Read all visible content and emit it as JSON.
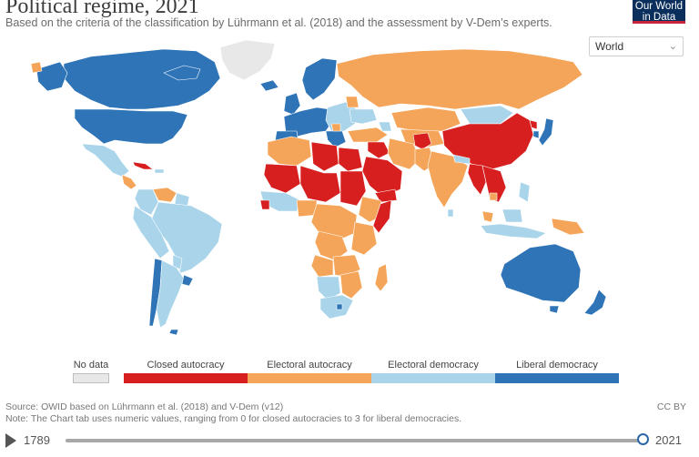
{
  "header": {
    "title": "Political regime, 2021",
    "subtitle": "Based on the criteria of the classification by Lührmann et al. (2018) and the assessment by V-Dem’s experts.",
    "logo_line1": "Our World",
    "logo_line2": "in Data"
  },
  "controls": {
    "region_select": "World"
  },
  "colors": {
    "no_data": "#e8e8e8",
    "closed_autocracy": "#d71f20",
    "electoral_autocracy": "#f5a559",
    "electoral_democracy": "#a9d4ea",
    "liberal_democracy": "#2e74b7",
    "ocean": "#ffffff",
    "border": "#ffffff"
  },
  "legend": {
    "no_data": "No data",
    "items": [
      "Closed autocracy",
      "Electoral autocracy",
      "Electoral democracy",
      "Liberal democracy"
    ]
  },
  "footer": {
    "source": "Source: OWID based on Lührmann et al. (2018) and V-Dem (v12)",
    "note": "Note: The Chart tab uses numeric values, ranging from 0 for closed autocracies to 3 for liberal democracies.",
    "license": "CC BY"
  },
  "timeline": {
    "start_year": "1789",
    "end_year": "2021",
    "position": 1.0
  }
}
